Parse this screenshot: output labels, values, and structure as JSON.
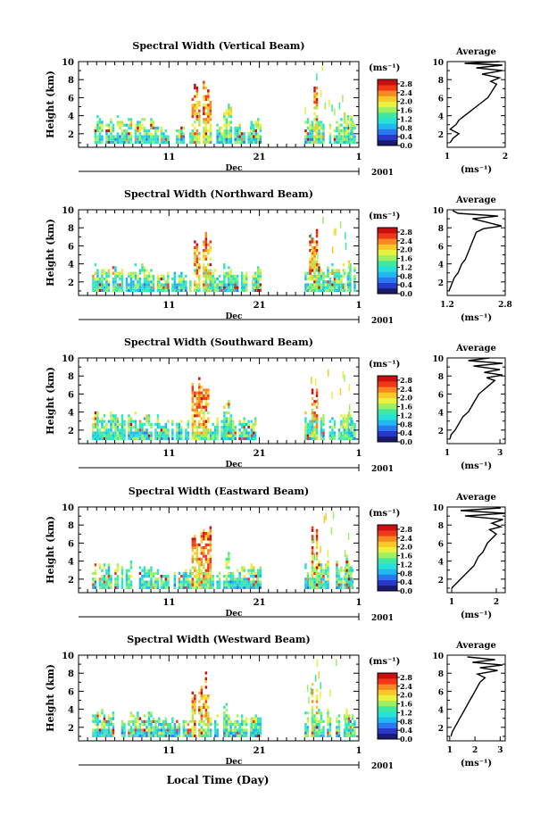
{
  "figure": {
    "x_axis_title": "Local Time (Day)",
    "colorbar_unit": "(ms⁻¹)",
    "colorbar_ticks": [
      "0.0",
      "0.4",
      "0.8",
      "1.2",
      "1.6",
      "2.0",
      "2.4",
      "2.8"
    ],
    "colorbar_range": [
      0,
      3.0
    ],
    "colormap": [
      "#1a1a70",
      "#2838c8",
      "#2a78f0",
      "#21b8f0",
      "#27e0d8",
      "#3fe8a0",
      "#9ff060",
      "#e8f040",
      "#f8c828",
      "#f88820",
      "#f03818",
      "#c81010"
    ],
    "month_label": "Dec",
    "year_label": "2001",
    "day_ticks": [
      "11",
      "21",
      "1"
    ],
    "avg_title": "Average",
    "avg_xunit": "(ms⁻¹)"
  },
  "chart_data": [
    {
      "type": "heatmap",
      "title": "Spectral Width (Vertical Beam)",
      "ylabel": "Height (km)",
      "ylim": [
        0.5,
        10
      ],
      "yticks": [
        "2",
        "4",
        "6",
        "8",
        "10"
      ],
      "xlim": [
        1,
        32
      ],
      "average_profile": {
        "xlim": [
          1,
          2
        ],
        "xticks": [
          "1",
          "2"
        ],
        "points": [
          [
            1.05,
            1
          ],
          [
            1.1,
            1.5
          ],
          [
            1.2,
            2
          ],
          [
            1.05,
            2.5
          ],
          [
            1.15,
            3
          ],
          [
            1.2,
            3.5
          ],
          [
            1.3,
            4
          ],
          [
            1.4,
            4.5
          ],
          [
            1.5,
            5
          ],
          [
            1.6,
            5.5
          ],
          [
            1.7,
            6
          ],
          [
            1.75,
            6.5
          ],
          [
            1.8,
            7
          ],
          [
            1.85,
            7.5
          ],
          [
            1.75,
            7.8
          ],
          [
            1.9,
            8.2
          ],
          [
            1.6,
            8.6
          ],
          [
            1.95,
            9
          ],
          [
            1.5,
            9.3
          ],
          [
            1.95,
            9.6
          ],
          [
            1.3,
            9.8
          ],
          [
            1.9,
            10
          ]
        ]
      }
    },
    {
      "type": "heatmap",
      "title": "Spectral Width (Northward Beam)",
      "ylabel": "Height (km)",
      "ylim": [
        0.5,
        10
      ],
      "yticks": [
        "2",
        "4",
        "6",
        "8",
        "10"
      ],
      "xlim": [
        1,
        32
      ],
      "average_profile": {
        "xlim": [
          1.2,
          2.8
        ],
        "xticks": [
          "1.2",
          "2.8"
        ],
        "points": [
          [
            1.25,
            1
          ],
          [
            1.3,
            1.5
          ],
          [
            1.35,
            2
          ],
          [
            1.4,
            2.5
          ],
          [
            1.5,
            3
          ],
          [
            1.55,
            3.5
          ],
          [
            1.6,
            4
          ],
          [
            1.7,
            4.5
          ],
          [
            1.75,
            5
          ],
          [
            1.8,
            5.5
          ],
          [
            1.85,
            6
          ],
          [
            1.9,
            6.5
          ],
          [
            1.95,
            7
          ],
          [
            2.0,
            7.5
          ],
          [
            2.2,
            7.9
          ],
          [
            2.7,
            8.2
          ],
          [
            2.3,
            8.6
          ],
          [
            1.9,
            9
          ],
          [
            2.6,
            9.3
          ],
          [
            1.5,
            9.6
          ],
          [
            1.35,
            9.9
          ]
        ]
      }
    },
    {
      "type": "heatmap",
      "title": "Spectral Width (Southward Beam)",
      "ylabel": "Height (km)",
      "ylim": [
        0.5,
        10
      ],
      "yticks": [
        "2",
        "4",
        "6",
        "8",
        "10"
      ],
      "xlim": [
        1,
        32
      ],
      "average_profile": {
        "xlim": [
          1,
          3.2
        ],
        "xticks": [
          "1",
          "3"
        ],
        "points": [
          [
            1.1,
            1
          ],
          [
            1.15,
            1.5
          ],
          [
            1.3,
            2
          ],
          [
            1.4,
            2.5
          ],
          [
            1.5,
            3
          ],
          [
            1.6,
            3.5
          ],
          [
            1.8,
            4
          ],
          [
            1.9,
            4.5
          ],
          [
            2.0,
            5
          ],
          [
            2.1,
            5.5
          ],
          [
            2.2,
            6
          ],
          [
            2.4,
            6.5
          ],
          [
            2.6,
            7
          ],
          [
            2.8,
            7.5
          ],
          [
            2.5,
            7.8
          ],
          [
            3.1,
            8.1
          ],
          [
            2.4,
            8.4
          ],
          [
            3.0,
            8.7
          ],
          [
            2.0,
            9.1
          ],
          [
            3.1,
            9.4
          ],
          [
            1.8,
            9.7
          ],
          [
            2.6,
            10
          ]
        ]
      }
    },
    {
      "type": "heatmap",
      "title": "Spectral Width (Eastward Beam)",
      "ylabel": "Height (km)",
      "ylim": [
        0.5,
        10
      ],
      "yticks": [
        "2",
        "4",
        "6",
        "8",
        "10"
      ],
      "xlim": [
        1,
        32
      ],
      "average_profile": {
        "xlim": [
          0.9,
          2.2
        ],
        "xticks": [
          "1",
          "2"
        ],
        "points": [
          [
            1.0,
            1
          ],
          [
            1.1,
            1.5
          ],
          [
            1.2,
            2
          ],
          [
            1.3,
            2.5
          ],
          [
            1.4,
            3
          ],
          [
            1.5,
            3.5
          ],
          [
            1.55,
            4
          ],
          [
            1.6,
            4.5
          ],
          [
            1.7,
            5
          ],
          [
            1.75,
            5.5
          ],
          [
            1.8,
            6
          ],
          [
            1.9,
            6.5
          ],
          [
            2.0,
            7
          ],
          [
            1.85,
            7.5
          ],
          [
            2.1,
            7.8
          ],
          [
            1.9,
            8.2
          ],
          [
            2.15,
            8.6
          ],
          [
            1.3,
            9.0
          ],
          [
            2.2,
            9.3
          ],
          [
            1.2,
            9.6
          ],
          [
            2.1,
            9.9
          ]
        ]
      }
    },
    {
      "type": "heatmap",
      "title": "Spectral Width (Westward Beam)",
      "ylabel": "Height (km)",
      "ylim": [
        0.5,
        10
      ],
      "yticks": [
        "2",
        "4",
        "6",
        "8",
        "10"
      ],
      "xlim": [
        1,
        32
      ],
      "average_profile": {
        "xlim": [
          0.9,
          3.2
        ],
        "xticks": [
          "1",
          "2",
          "3"
        ],
        "points": [
          [
            1.05,
            1
          ],
          [
            1.1,
            1.5
          ],
          [
            1.2,
            2
          ],
          [
            1.3,
            2.5
          ],
          [
            1.4,
            3
          ],
          [
            1.5,
            3.5
          ],
          [
            1.6,
            4
          ],
          [
            1.7,
            4.5
          ],
          [
            1.8,
            5
          ],
          [
            1.9,
            5.5
          ],
          [
            2.0,
            6
          ],
          [
            2.1,
            6.5
          ],
          [
            2.2,
            7
          ],
          [
            2.4,
            7.5
          ],
          [
            2.1,
            7.9
          ],
          [
            2.9,
            8.3
          ],
          [
            2.2,
            8.6
          ],
          [
            3.1,
            8.9
          ],
          [
            1.9,
            9.2
          ],
          [
            2.8,
            9.5
          ],
          [
            1.7,
            9.8
          ]
        ]
      }
    }
  ]
}
